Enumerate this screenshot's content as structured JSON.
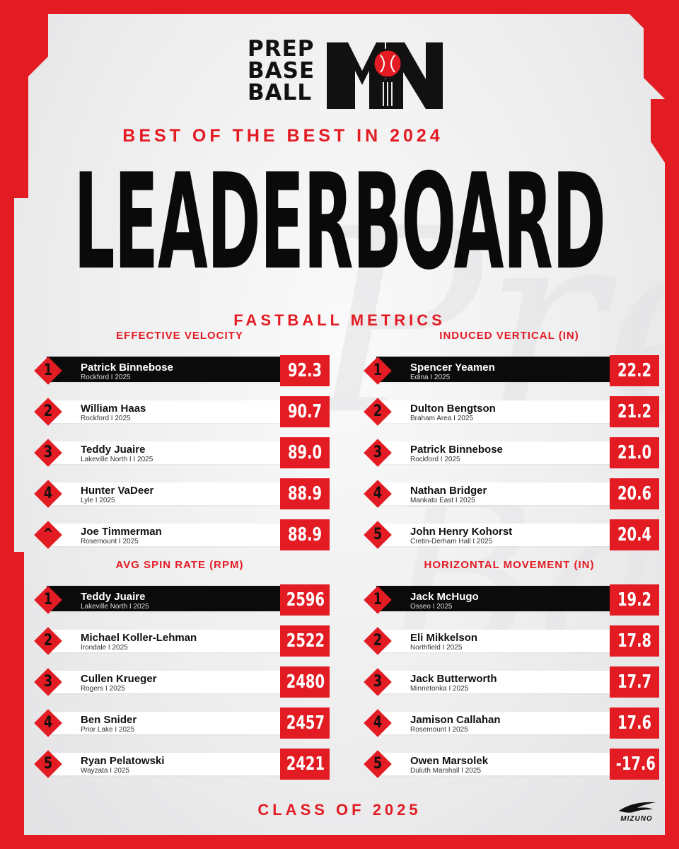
{
  "colors": {
    "accent": "#e31b23",
    "dark": "#0b0b0b",
    "background": "#eeeeef"
  },
  "logo": {
    "line1": "PREP",
    "line2": "BASE",
    "line3": "BALL",
    "mark": "MN"
  },
  "subtitle": "BEST OF THE BEST IN 2024",
  "headline": "LEADERBOARD",
  "section_title": "FASTBALL METRICS",
  "boards": [
    {
      "title": "EFFECTIVE VELOCITY",
      "rows": [
        {
          "rank": "1",
          "name": "Patrick Binnebose",
          "meta": "Rockford I 2025",
          "value": "92.3"
        },
        {
          "rank": "2",
          "name": "William Haas",
          "meta": "Rockford I 2025",
          "value": "90.7"
        },
        {
          "rank": "3",
          "name": "Teddy Juaire",
          "meta": "Lakeville North I I 2025",
          "value": "89.0"
        },
        {
          "rank": "4",
          "name": "Hunter VaDeer",
          "meta": "Lyle I 2025",
          "value": "88.9"
        },
        {
          "rank": "^",
          "name": "Joe Timmerman",
          "meta": "Rosemount I 2025",
          "value": "88.9"
        }
      ]
    },
    {
      "title": "INDUCED VERTICAL (IN)",
      "rows": [
        {
          "rank": "1",
          "name": "Spencer Yeamen",
          "meta": "Edina I 2025",
          "value": "22.2"
        },
        {
          "rank": "2",
          "name": "Dulton Bengtson",
          "meta": "Braham Area I 2025",
          "value": "21.2"
        },
        {
          "rank": "3",
          "name": "Patrick Binnebose",
          "meta": "Rockford I 2025",
          "value": "21.0"
        },
        {
          "rank": "4",
          "name": "Nathan Bridger",
          "meta": "Mankato East I 2025",
          "value": "20.6"
        },
        {
          "rank": "5",
          "name": "John Henry Kohorst",
          "meta": "Cretin-Derham Hall I 2025",
          "value": "20.4"
        }
      ]
    },
    {
      "title": "AVG SPIN RATE (RPM)",
      "rows": [
        {
          "rank": "1",
          "name": "Teddy Juaire",
          "meta": "Lakeville North I 2025",
          "value": "2596"
        },
        {
          "rank": "2",
          "name": "Michael Koller-Lehman",
          "meta": "Irondale I 2025",
          "value": "2522"
        },
        {
          "rank": "3",
          "name": "Cullen Krueger",
          "meta": "Rogers I 2025",
          "value": "2480"
        },
        {
          "rank": "4",
          "name": "Ben Snider",
          "meta": "Prior Lake I 2025",
          "value": "2457"
        },
        {
          "rank": "5",
          "name": "Ryan Pelatowski",
          "meta": "Wayzata I 2025",
          "value": "2421"
        }
      ]
    },
    {
      "title": "HORIZONTAL MOVEMENT (IN)",
      "rows": [
        {
          "rank": "1",
          "name": "Jack McHugo",
          "meta": "Osseo I 2025",
          "value": "19.2"
        },
        {
          "rank": "2",
          "name": "Eli Mikkelson",
          "meta": "Northfield I 2025",
          "value": "17.8"
        },
        {
          "rank": "3",
          "name": "Jack Butterworth",
          "meta": "Minnetonka I 2025",
          "value": "17.7"
        },
        {
          "rank": "4",
          "name": "Jamison Callahan",
          "meta": "Rosemount I 2025",
          "value": "17.6"
        },
        {
          "rank": "5",
          "name": "Owen Marsolek",
          "meta": "Duluth Marshall I 2025",
          "value": "-17.6"
        }
      ]
    }
  ],
  "footer": "CLASS OF 2025",
  "sponsor": "MIZUNO"
}
